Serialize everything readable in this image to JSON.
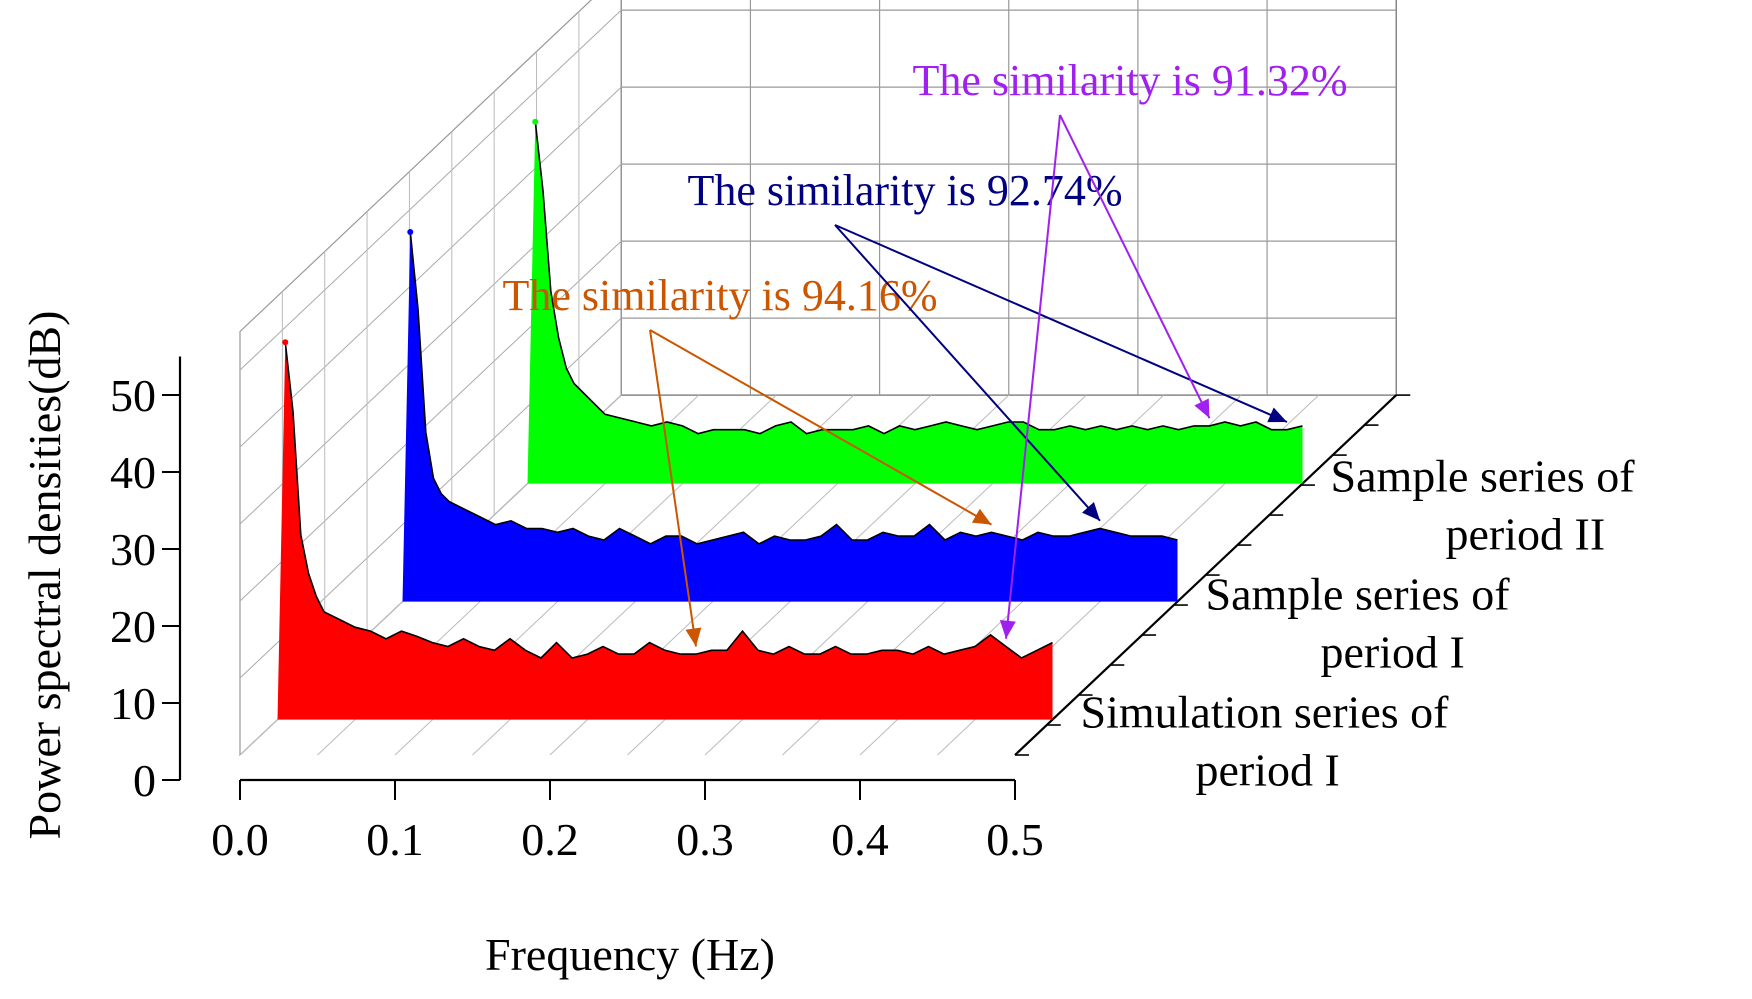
{
  "chart_data": {
    "type": "area",
    "projection": "3d-waterfall",
    "xlabel": "Frequency (Hz)",
    "ylabel": "Power spectral densities(dB)",
    "xlim": [
      0.0,
      0.5
    ],
    "ylim": [
      0,
      50
    ],
    "x_ticks": [
      "0.0",
      "0.1",
      "0.2",
      "0.3",
      "0.4",
      "0.5"
    ],
    "y_ticks": [
      "0",
      "10",
      "20",
      "30",
      "40",
      "50"
    ],
    "grid": true,
    "series": [
      {
        "name_lines": [
          "Simulation series of",
          "period I"
        ],
        "color": "#ff0000",
        "peak": {
          "x": 0.005,
          "y": 49
        },
        "x": [
          0.0,
          0.005,
          0.01,
          0.015,
          0.02,
          0.025,
          0.03,
          0.04,
          0.05,
          0.06,
          0.07,
          0.08,
          0.09,
          0.1,
          0.11,
          0.12,
          0.13,
          0.14,
          0.15,
          0.16,
          0.17,
          0.18,
          0.19,
          0.2,
          0.21,
          0.22,
          0.23,
          0.24,
          0.25,
          0.26,
          0.27,
          0.28,
          0.29,
          0.3,
          0.31,
          0.32,
          0.33,
          0.34,
          0.35,
          0.36,
          0.37,
          0.38,
          0.39,
          0.4,
          0.41,
          0.42,
          0.43,
          0.44,
          0.45,
          0.46,
          0.47,
          0.48,
          0.49,
          0.5
        ],
        "y": [
          0,
          49,
          40,
          24,
          19,
          16,
          14,
          13,
          12,
          11.5,
          10.5,
          11.5,
          10.8,
          10,
          9.5,
          10.5,
          9.5,
          9,
          10.5,
          9,
          8,
          10,
          8,
          8.5,
          9.5,
          8.5,
          8.5,
          10,
          9,
          8.5,
          8.5,
          9,
          9,
          11.5,
          9,
          8.5,
          9.5,
          8.5,
          8.5,
          9.5,
          8.5,
          8.5,
          9,
          9,
          8.5,
          9.5,
          8.5,
          9,
          9.5,
          11,
          9.5,
          8,
          9,
          10
        ]
      },
      {
        "name_lines": [
          "Sample series of",
          "period I"
        ],
        "color": "#0000ff",
        "peak": {
          "x": 0.005,
          "y": 48
        },
        "x": [
          0.0,
          0.005,
          0.01,
          0.015,
          0.02,
          0.025,
          0.03,
          0.04,
          0.05,
          0.06,
          0.07,
          0.08,
          0.09,
          0.1,
          0.11,
          0.12,
          0.13,
          0.14,
          0.15,
          0.16,
          0.17,
          0.18,
          0.19,
          0.2,
          0.21,
          0.22,
          0.23,
          0.24,
          0.25,
          0.26,
          0.27,
          0.28,
          0.29,
          0.3,
          0.31,
          0.32,
          0.33,
          0.34,
          0.35,
          0.36,
          0.37,
          0.38,
          0.39,
          0.4,
          0.41,
          0.42,
          0.43,
          0.44,
          0.45,
          0.46,
          0.47,
          0.48,
          0.49,
          0.5
        ],
        "y": [
          0,
          48,
          38,
          22,
          16,
          14,
          13,
          12,
          11,
          10,
          10.5,
          9.5,
          9.5,
          9,
          9.5,
          8.5,
          8,
          9.5,
          8.5,
          7.5,
          8.5,
          8.5,
          7.5,
          8,
          8.5,
          9,
          7.5,
          8.5,
          8,
          8,
          8.5,
          10,
          8,
          8,
          9,
          8.5,
          8.5,
          10,
          8,
          9,
          8.5,
          9,
          8.5,
          8,
          9,
          8.5,
          8.5,
          9,
          9.5,
          9,
          8.5,
          8.5,
          8.5,
          8
        ]
      },
      {
        "name_lines": [
          "Sample series of",
          "period II"
        ],
        "color": "#00ff00",
        "peak": {
          "x": 0.005,
          "y": 47
        },
        "x": [
          0.0,
          0.005,
          0.01,
          0.015,
          0.02,
          0.025,
          0.03,
          0.04,
          0.05,
          0.06,
          0.07,
          0.08,
          0.09,
          0.1,
          0.11,
          0.12,
          0.13,
          0.14,
          0.15,
          0.16,
          0.17,
          0.18,
          0.19,
          0.2,
          0.21,
          0.22,
          0.23,
          0.24,
          0.25,
          0.26,
          0.27,
          0.28,
          0.29,
          0.3,
          0.31,
          0.32,
          0.33,
          0.34,
          0.35,
          0.36,
          0.37,
          0.38,
          0.39,
          0.4,
          0.41,
          0.42,
          0.43,
          0.44,
          0.45,
          0.46,
          0.47,
          0.48,
          0.49,
          0.5
        ],
        "y": [
          0,
          47,
          38,
          25,
          19,
          15,
          13,
          11,
          9,
          8.5,
          8,
          7.5,
          8,
          7.5,
          6.5,
          7,
          7,
          7,
          6.5,
          7.5,
          8,
          6.5,
          7,
          7,
          7,
          7.5,
          6.5,
          7.5,
          7,
          7.5,
          8,
          7.5,
          7,
          7.5,
          8,
          8,
          7,
          7,
          7.5,
          7,
          7.5,
          7,
          7.5,
          7,
          7.5,
          7,
          7.5,
          7.5,
          8,
          7.5,
          8,
          7,
          7,
          7.5
        ]
      }
    ],
    "annotations": [
      {
        "text": "The similarity is 94.16%",
        "color": "#cc5500",
        "series_pair": [
          0,
          1
        ],
        "arrow_x": [
          0.27,
          0.38
        ]
      },
      {
        "text": "The similarity is 92.74%",
        "color": "#000080",
        "series_pair": [
          1,
          2
        ],
        "arrow_x": [
          0.45,
          0.49
        ]
      },
      {
        "text": "The similarity is 91.32%",
        "color": "#a020f0",
        "series_pair": [
          0,
          2
        ],
        "arrow_x": [
          0.47,
          0.44
        ]
      }
    ]
  }
}
